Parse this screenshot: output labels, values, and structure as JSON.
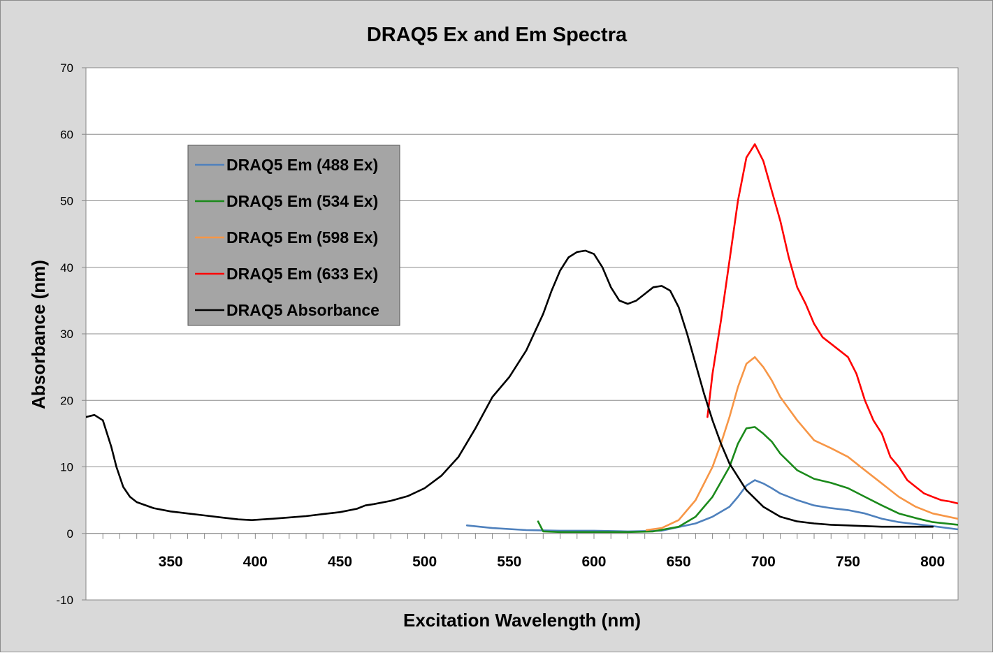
{
  "chart_data": {
    "type": "line",
    "title": "DRAQ5 Ex and Em Spectra",
    "xlabel": "Excitation Wavelength (nm)",
    "ylabel": "Absorbance (nm)",
    "xlim": [
      300,
      815
    ],
    "ylim": [
      -10,
      70
    ],
    "xticks": [
      350,
      400,
      450,
      500,
      550,
      600,
      650,
      700,
      750,
      800
    ],
    "yticks": [
      -10,
      0,
      10,
      20,
      30,
      40,
      50,
      60,
      70
    ],
    "grid": true,
    "legend_position": "upper-left",
    "series": [
      {
        "name": "DRAQ5 Em (488 Ex)",
        "color": "#4f81bd",
        "x": [
          525,
          540,
          560,
          580,
          600,
          620,
          640,
          660,
          670,
          680,
          685,
          690,
          695,
          700,
          705,
          710,
          720,
          730,
          740,
          750,
          760,
          770,
          780,
          790,
          800,
          815
        ],
        "y": [
          1.2,
          0.8,
          0.5,
          0.4,
          0.4,
          0.3,
          0.4,
          1.5,
          2.5,
          4.0,
          5.5,
          7.2,
          8.0,
          7.5,
          6.8,
          6.0,
          5.0,
          4.2,
          3.8,
          3.5,
          3.0,
          2.2,
          1.7,
          1.4,
          1.1,
          0.6
        ]
      },
      {
        "name": "DRAQ5 Em (534 Ex)",
        "color": "#1b8a1b",
        "x": [
          567,
          570,
          580,
          600,
          620,
          635,
          650,
          660,
          670,
          680,
          685,
          690,
          695,
          700,
          705,
          710,
          720,
          730,
          740,
          750,
          760,
          770,
          780,
          790,
          800,
          815
        ],
        "y": [
          1.8,
          0.3,
          0.2,
          0.2,
          0.2,
          0.3,
          1.0,
          2.5,
          5.5,
          10.0,
          13.5,
          15.8,
          16.0,
          15.0,
          13.8,
          12.0,
          9.5,
          8.2,
          7.6,
          6.8,
          5.5,
          4.2,
          3.0,
          2.3,
          1.7,
          1.3
        ]
      },
      {
        "name": "DRAQ5 Em (598 Ex)",
        "color": "#f79646",
        "x": [
          631,
          640,
          650,
          660,
          670,
          675,
          680,
          685,
          690,
          695,
          700,
          705,
          710,
          720,
          730,
          740,
          750,
          760,
          770,
          780,
          790,
          800,
          815
        ],
        "y": [
          0.5,
          0.8,
          2.0,
          5.0,
          10.0,
          13.5,
          17.5,
          22.0,
          25.5,
          26.5,
          25.0,
          23.0,
          20.5,
          17.0,
          14.0,
          12.8,
          11.5,
          9.5,
          7.5,
          5.5,
          4.0,
          3.0,
          2.2
        ]
      },
      {
        "name": "DRAQ5 Em (633 Ex)",
        "color": "#ff0000",
        "x": [
          667,
          670,
          675,
          680,
          685,
          690,
          695,
          700,
          705,
          710,
          715,
          720,
          725,
          730,
          735,
          740,
          745,
          750,
          755,
          760,
          765,
          770,
          775,
          780,
          785,
          790,
          795,
          800,
          805,
          810,
          815
        ],
        "y": [
          17.5,
          24.0,
          32.0,
          41.0,
          50.0,
          56.5,
          58.5,
          56.0,
          51.5,
          47.0,
          41.5,
          37.0,
          34.5,
          31.5,
          29.5,
          28.5,
          27.5,
          26.5,
          24.0,
          20.0,
          17.0,
          15.0,
          11.5,
          10.0,
          8.0,
          7.0,
          6.0,
          5.5,
          5.0,
          4.8,
          4.5
        ]
      },
      {
        "name": "DRAQ5 Absorbance",
        "color": "#000000",
        "x": [
          300,
          305,
          310,
          315,
          318,
          322,
          326,
          330,
          340,
          350,
          360,
          370,
          380,
          390,
          398,
          410,
          420,
          430,
          440,
          450,
          460,
          465,
          470,
          480,
          490,
          500,
          510,
          520,
          530,
          540,
          550,
          560,
          570,
          575,
          580,
          585,
          590,
          595,
          600,
          605,
          610,
          615,
          620,
          625,
          630,
          635,
          640,
          645,
          650,
          655,
          660,
          665,
          670,
          675,
          680,
          690,
          700,
          710,
          720,
          730,
          740,
          750,
          760,
          770,
          780,
          790,
          800
        ],
        "y": [
          17.5,
          17.8,
          17.0,
          13.0,
          10.0,
          7.0,
          5.5,
          4.7,
          3.8,
          3.3,
          3.0,
          2.7,
          2.4,
          2.1,
          2.0,
          2.2,
          2.4,
          2.6,
          2.9,
          3.2,
          3.7,
          4.2,
          4.4,
          4.9,
          5.6,
          6.8,
          8.7,
          11.5,
          15.8,
          20.5,
          23.5,
          27.5,
          33.0,
          36.5,
          39.5,
          41.5,
          42.3,
          42.5,
          42.0,
          40.0,
          37.0,
          35.0,
          34.5,
          35.0,
          36.0,
          37.0,
          37.2,
          36.5,
          34.0,
          30.0,
          25.5,
          21.0,
          17.0,
          13.5,
          10.5,
          6.5,
          4.0,
          2.5,
          1.8,
          1.5,
          1.3,
          1.2,
          1.1,
          1.0,
          1.0,
          1.0,
          1.0
        ]
      }
    ]
  }
}
